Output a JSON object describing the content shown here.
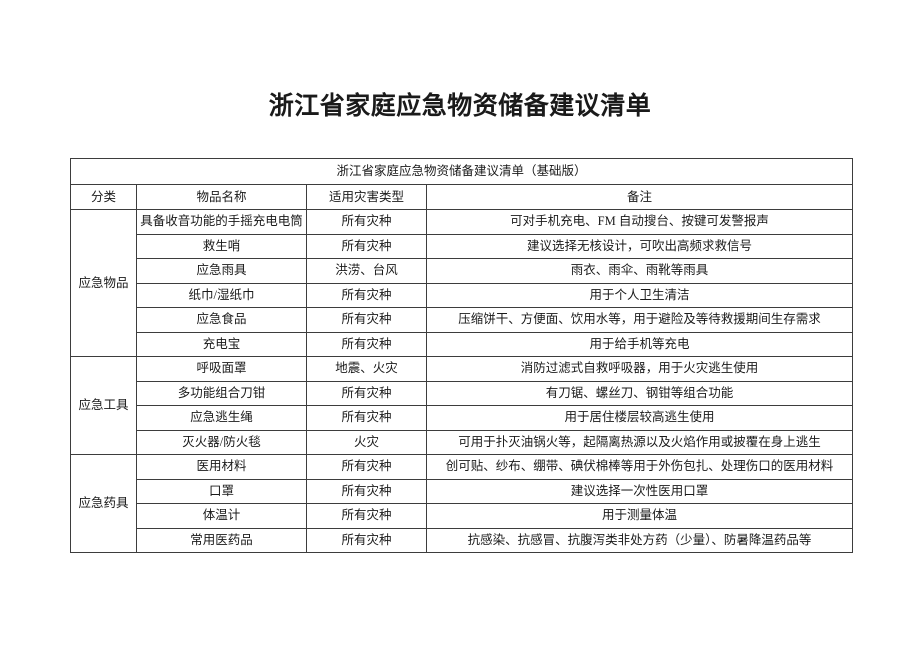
{
  "page_title": "浙江省家庭应急物资储备建议清单",
  "table": {
    "caption": "浙江省家庭应急物资储备建议清单（基础版）",
    "headers": {
      "category": "分类",
      "name": "物品名称",
      "disaster": "适用灾害类型",
      "note": "备注"
    },
    "sections": [
      {
        "category": "应急物品",
        "items": [
          {
            "name": "具备收音功能的手摇充电电筒",
            "disaster": "所有灾种",
            "note": "可对手机充电、FM 自动搜台、按键可发警报声"
          },
          {
            "name": "救生哨",
            "disaster": "所有灾种",
            "note": "建议选择无核设计，可吹出高频求救信号"
          },
          {
            "name": "应急雨具",
            "disaster": "洪涝、台风",
            "note": "雨衣、雨伞、雨靴等雨具"
          },
          {
            "name": "纸巾/湿纸巾",
            "disaster": "所有灾种",
            "note": "用于个人卫生清洁"
          },
          {
            "name": "应急食品",
            "disaster": "所有灾种",
            "note": "压缩饼干、方便面、饮用水等，用于避险及等待救援期间生存需求"
          },
          {
            "name": "充电宝",
            "disaster": "所有灾种",
            "note": "用于给手机等充电"
          }
        ]
      },
      {
        "category": "应急工具",
        "items": [
          {
            "name": "呼吸面罩",
            "disaster": "地震、火灾",
            "note": "消防过滤式自救呼吸器，用于火灾逃生使用"
          },
          {
            "name": "多功能组合刀钳",
            "disaster": "所有灾种",
            "note": "有刀锯、螺丝刀、钢钳等组合功能"
          },
          {
            "name": "应急逃生绳",
            "disaster": "所有灾种",
            "note": "用于居住楼层较高逃生使用"
          },
          {
            "name": "灭火器/防火毯",
            "disaster": "火灾",
            "note": "可用于扑灭油锅火等，起隔离热源以及火焰作用或披覆在身上逃生"
          }
        ]
      },
      {
        "category": "应急药具",
        "items": [
          {
            "name": "医用材料",
            "disaster": "所有灾种",
            "note": "创可贴、纱布、绷带、碘伏棉棒等用于外伤包扎、处理伤口的医用材料"
          },
          {
            "name": "口罩",
            "disaster": "所有灾种",
            "note": "建议选择一次性医用口罩"
          },
          {
            "name": "体温计",
            "disaster": "所有灾种",
            "note": "用于测量体温"
          },
          {
            "name": "常用医药品",
            "disaster": "所有灾种",
            "note": "抗感染、抗感冒、抗腹泻类非处方药（少量）、防暑降温药品等"
          }
        ]
      }
    ]
  }
}
